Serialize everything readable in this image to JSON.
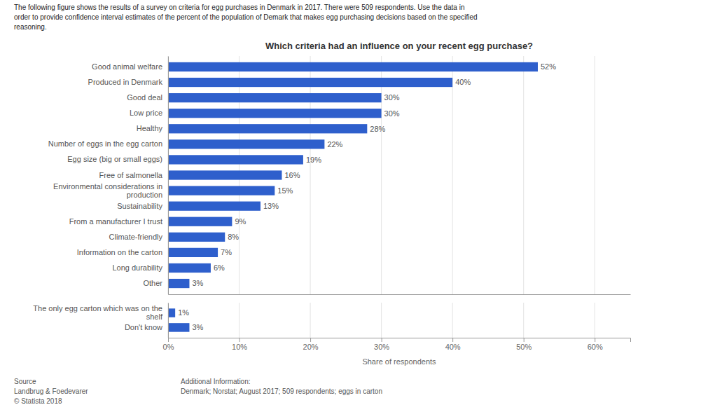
{
  "chart_data": [
    {
      "type": "bar",
      "orientation": "horizontal",
      "subtitle": "The following figure shows the results of a survey on criteria for egg purchases in Denmark in 2017. There were 509 respondents. Use the data in\norder to provide confidence interval estimates of the percent of the population of Demark that makes egg purchasing decisions based on the specified\nreasoning.",
      "title": "Which criteria had an influence on your recent egg purchase?",
      "categories": [
        "Good animal welfare",
        "Produced in Denmark",
        "Good deal",
        "Low price",
        "Healthy",
        "Number of eggs in the egg carton",
        "Egg size (big or small eggs)",
        "Free of salmonella",
        "Environmental considerations in\nproduction",
        "Sustainability",
        "From a manufacturer I trust",
        "Climate-friendly",
        "Information on the carton",
        "Long durability",
        "Other"
      ],
      "values": [
        52,
        40,
        30,
        30,
        28,
        22,
        19,
        16,
        15,
        13,
        9,
        8,
        7,
        6,
        3
      ],
      "value_labels": [
        "52%",
        "40%",
        "30%",
        "30%",
        "28%",
        "22%",
        "19%",
        "16%",
        "15%",
        "13%",
        "9%",
        "8%",
        "7%",
        "6%",
        "3%"
      ],
      "data_labels": true,
      "color": "#2e5fcc",
      "xlim": [
        0,
        65
      ],
      "xticks": [
        0,
        10,
        20,
        30,
        40,
        50,
        60
      ],
      "grid": true,
      "tick_labels": "y"
    },
    {
      "type": "bar",
      "orientation": "horizontal",
      "categories": [
        "The only egg carton which was on the\nshelf",
        "Don't know"
      ],
      "values": [
        1,
        3
      ],
      "value_labels": [
        "1%",
        "3%"
      ],
      "data_labels": true,
      "color": "#2e5fcc",
      "xlabel": "Share of respondents",
      "xlim": [
        0,
        65
      ],
      "xticks": [
        {
          "value": 0,
          "label": "0%"
        },
        {
          "value": 10,
          "label": "10%"
        },
        {
          "value": 20,
          "label": "20%"
        },
        {
          "value": 30,
          "label": "30%"
        },
        {
          "value": 40,
          "label": "40%"
        },
        {
          "value": 50,
          "label": "50%"
        },
        {
          "value": 60,
          "label": "60%"
        }
      ],
      "grid": true,
      "tick_labels": true,
      "annotations": [
        "Source\nLandbrug & Foedevarer\n© Statista 2018",
        "Additional Information:\nDenmark; Norstat; August 2017; 509 respondents; eggs in carton"
      ]
    }
  ]
}
